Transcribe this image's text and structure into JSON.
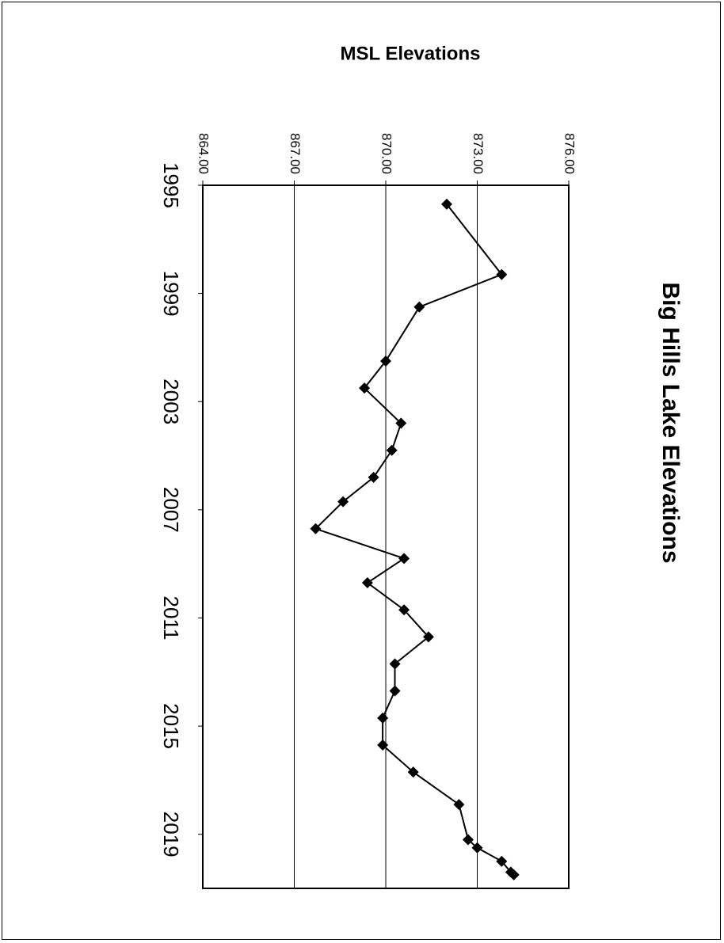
{
  "chart_data": {
    "type": "line",
    "title": "Big Hills Lake Elevations",
    "ylabel": "MSL Elevations",
    "xlabel": "",
    "xlim": [
      1995,
      2021
    ],
    "ylim": [
      864,
      876
    ],
    "x_ticks": [
      "1995",
      "1999",
      "2003",
      "2007",
      "2011",
      "2015",
      "2019"
    ],
    "y_ticks": [
      "864.00",
      "867.00",
      "870.00",
      "873.00",
      "876.00"
    ],
    "grid": "horizontal major gridlines",
    "legend": "none",
    "marker": "diamond",
    "line_color": "#000000",
    "series": [
      {
        "x": [
          1995.7,
          1998.3,
          1999.5,
          2001.5,
          2002.5,
          2003.8,
          2004.8,
          2005.8,
          2006.7,
          2007.7,
          2008.8,
          2009.7,
          2010.7,
          2011.7,
          2012.7,
          2013.7,
          2014.7,
          2015.7,
          2016.7,
          2017.9,
          2019.2,
          2019.5,
          2020.0,
          2020.4,
          2020.5
        ],
        "y": [
          872.0,
          873.8,
          871.1,
          870.0,
          869.3,
          870.5,
          870.2,
          869.6,
          868.6,
          867.7,
          870.6,
          869.4,
          870.6,
          871.4,
          870.3,
          870.3,
          869.9,
          869.9,
          870.9,
          872.4,
          872.7,
          873.0,
          873.8,
          874.1,
          874.2
        ]
      }
    ]
  }
}
